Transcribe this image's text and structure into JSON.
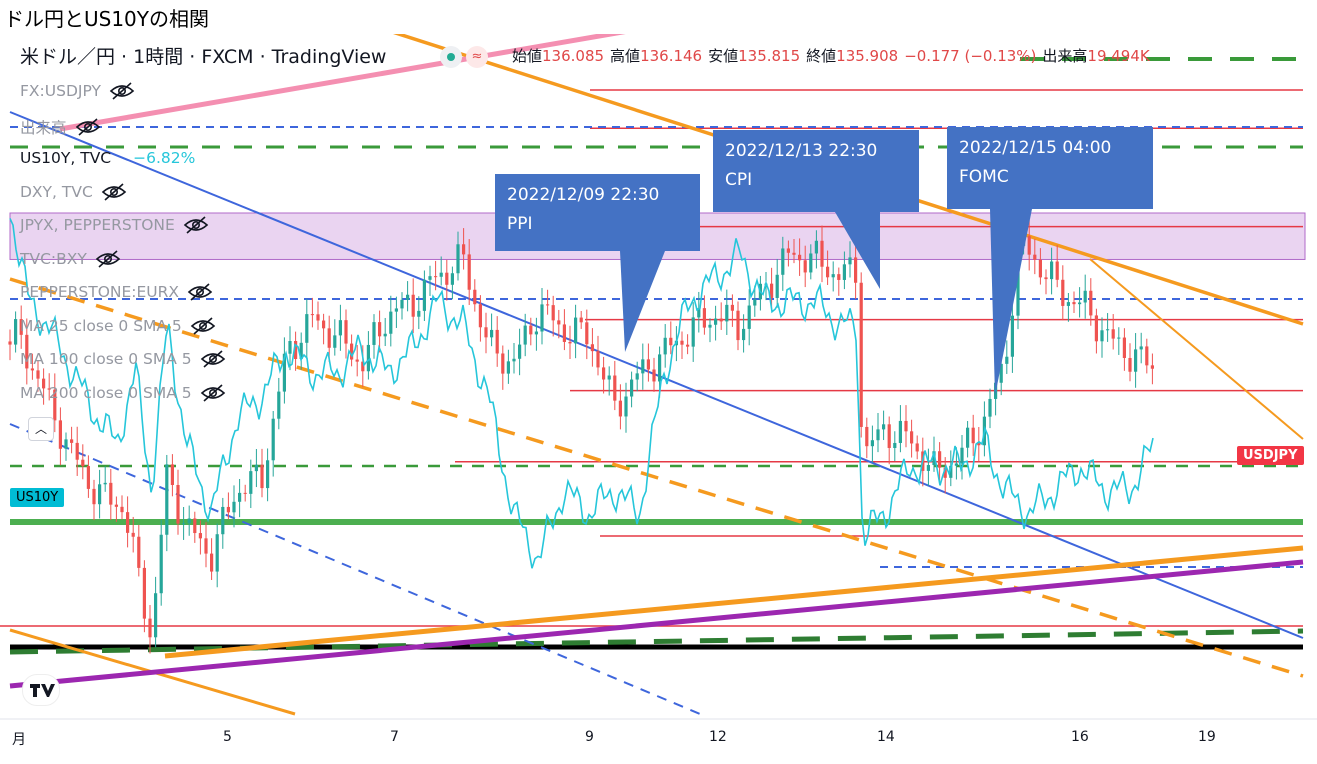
{
  "page": {
    "title": "ドル円とUS10Yの相関"
  },
  "legend": {
    "symbol_title": "米ドル／円 · 1時間 · FXCM · TradingView",
    "ohlc": [
      {
        "label": "始値",
        "value": "136.085"
      },
      {
        "label": "高値",
        "value": "136.146"
      },
      {
        "label": "安値",
        "value": "135.815"
      },
      {
        "label": "終値",
        "value": "135.908"
      },
      {
        "label": "",
        "value": "−0.177 (−0.13%)"
      },
      {
        "label": "出来高",
        "value": "19.494K"
      }
    ],
    "indicators": [
      {
        "name": "FX:USDJPY",
        "value": "",
        "visible": false
      },
      {
        "name": "出来高",
        "value": "",
        "visible": false
      },
      {
        "name": "US10Y, TVC",
        "value": "−6.82%",
        "visible": true
      },
      {
        "name": "DXY, TVC",
        "value": "",
        "visible": false
      },
      {
        "name": "JPYX, PEPPERSTONE",
        "value": "",
        "visible": false
      },
      {
        "name": "TVC:BXY",
        "value": "",
        "visible": false
      },
      {
        "name": "PEPPERSTONE:EURX",
        "value": "",
        "visible": false
      },
      {
        "name": "MA 25 close 0 SMA 5",
        "value": "",
        "visible": false
      },
      {
        "name": "MA 100 close 0 SMA 5",
        "value": "",
        "visible": false
      },
      {
        "name": "MA 200 close 0 SMA 5",
        "value": "",
        "visible": false
      }
    ]
  },
  "labels": {
    "usdjpy": "USDJPY",
    "us10y": "US10Y"
  },
  "colors": {
    "up": "#26a69a",
    "down": "#ef5350",
    "us10y": "#26c6da",
    "callout": "#4472c4",
    "resistance": "#e53945",
    "trend_blue": "#3e66dc",
    "trend_orange": "#f59a1f",
    "green_dash": "#3a9a3a",
    "purple": "#9c27b0",
    "pink": "#f48fb1"
  },
  "chart_data": {
    "type": "candlestick",
    "xaxis_ticks": [
      "月",
      "5",
      "7",
      "9",
      "12",
      "14",
      "16",
      "19"
    ],
    "annotations": [
      {
        "date": "2022/12/09 22:30",
        "event": "PPI"
      },
      {
        "date": "2022/12/13 22:30",
        "event": "CPI"
      },
      {
        "date": "2022/12/15 04:00",
        "event": "FOMC"
      }
    ],
    "series": [
      {
        "name": "FX:USDJPY",
        "kind": "candles"
      },
      {
        "name": "US10Y, TVC",
        "kind": "line"
      }
    ],
    "usdjpy_path": [
      [
        0.0,
        136.4
      ],
      [
        0.15,
        136.5
      ],
      [
        0.6,
        135.3
      ],
      [
        1.0,
        134.3
      ],
      [
        1.4,
        133.6
      ],
      [
        1.8,
        133.4
      ],
      [
        2.0,
        132.3
      ],
      [
        2.25,
        131.0
      ],
      [
        2.5,
        134.0
      ],
      [
        2.8,
        133.0
      ],
      [
        3.2,
        132.5
      ],
      [
        3.6,
        133.7
      ],
      [
        4.0,
        133.9
      ],
      [
        4.4,
        136.2
      ],
      [
        4.8,
        136.8
      ],
      [
        5.2,
        136.5
      ],
      [
        5.6,
        136.0
      ],
      [
        6.0,
        136.9
      ],
      [
        6.4,
        137.1
      ],
      [
        6.8,
        137.6
      ],
      [
        7.2,
        137.9
      ],
      [
        7.6,
        136.3
      ],
      [
        8.0,
        136.0
      ],
      [
        8.4,
        137.0
      ],
      [
        8.8,
        136.6
      ],
      [
        9.2,
        136.5
      ],
      [
        9.6,
        135.2
      ],
      [
        10.0,
        135.8
      ],
      [
        10.4,
        136.2
      ],
      [
        10.8,
        136.6
      ],
      [
        11.2,
        136.9
      ],
      [
        11.6,
        136.7
      ],
      [
        12.0,
        137.4
      ],
      [
        12.4,
        138.0
      ],
      [
        12.8,
        137.9
      ],
      [
        13.2,
        137.6
      ],
      [
        13.45,
        137.7
      ],
      [
        13.55,
        134.3
      ],
      [
        13.9,
        134.8
      ],
      [
        14.3,
        134.6
      ],
      [
        14.7,
        134.0
      ],
      [
        15.1,
        134.3
      ],
      [
        15.5,
        135.0
      ],
      [
        15.8,
        136.0
      ],
      [
        16.05,
        138.2
      ],
      [
        16.3,
        137.9
      ],
      [
        16.7,
        137.3
      ],
      [
        17.1,
        137.0
      ],
      [
        17.5,
        136.4
      ],
      [
        17.9,
        136.1
      ],
      [
        18.2,
        135.9
      ]
    ],
    "us10y_path": [
      [
        0.0,
        3.62
      ],
      [
        0.3,
        3.58
      ],
      [
        0.6,
        3.57
      ],
      [
        1.0,
        3.55
      ],
      [
        1.4,
        3.53
      ],
      [
        1.7,
        3.52
      ],
      [
        2.0,
        3.55
      ],
      [
        2.25,
        3.5
      ],
      [
        2.5,
        3.57
      ],
      [
        2.8,
        3.52
      ],
      [
        3.2,
        3.49
      ],
      [
        3.6,
        3.53
      ],
      [
        4.0,
        3.54
      ],
      [
        4.4,
        3.56
      ],
      [
        4.8,
        3.55
      ],
      [
        5.2,
        3.55
      ],
      [
        5.6,
        3.56
      ],
      [
        6.0,
        3.55
      ],
      [
        6.4,
        3.56
      ],
      [
        6.8,
        3.58
      ],
      [
        7.2,
        3.57
      ],
      [
        7.6,
        3.54
      ],
      [
        8.0,
        3.49
      ],
      [
        8.4,
        3.47
      ],
      [
        8.8,
        3.5
      ],
      [
        9.2,
        3.49
      ],
      [
        9.6,
        3.5
      ],
      [
        10.0,
        3.49
      ],
      [
        10.4,
        3.55
      ],
      [
        10.8,
        3.58
      ],
      [
        11.2,
        3.59
      ],
      [
        11.6,
        3.6
      ],
      [
        12.0,
        3.58
      ],
      [
        12.4,
        3.58
      ],
      [
        12.8,
        3.58
      ],
      [
        13.2,
        3.57
      ],
      [
        13.45,
        3.57
      ],
      [
        13.55,
        3.48
      ],
      [
        13.9,
        3.49
      ],
      [
        14.3,
        3.51
      ],
      [
        14.7,
        3.51
      ],
      [
        15.1,
        3.51
      ],
      [
        15.5,
        3.52
      ],
      [
        15.8,
        3.5
      ],
      [
        16.2,
        3.49
      ],
      [
        16.6,
        3.5
      ],
      [
        17.0,
        3.51
      ],
      [
        17.4,
        3.5
      ],
      [
        17.8,
        3.5
      ],
      [
        18.2,
        3.52
      ]
    ],
    "usdjpy_range": [
      130.5,
      141.0
    ],
    "us10y_range": [
      3.43,
      3.66
    ],
    "x_range": [
      0,
      20.5
    ],
    "usdjpy_resistance_levels": [
      141.0,
      140.3,
      138.5,
      136.8,
      135.5,
      134.2
    ],
    "shaded_zone": [
      137.9,
      138.75
    ],
    "grid": false
  }
}
